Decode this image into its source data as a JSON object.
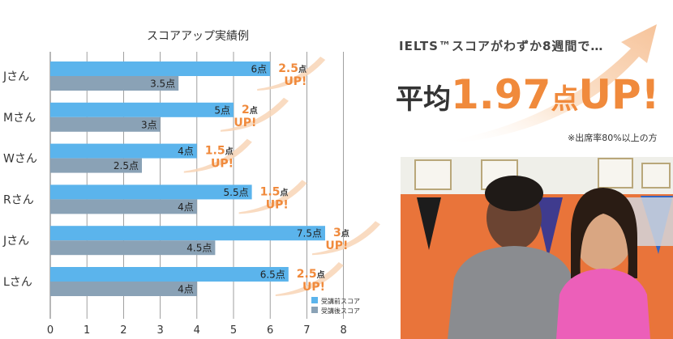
{
  "chart_data": {
    "type": "bar",
    "orientation": "horizontal",
    "title": "スコアアップ実績例",
    "categories": [
      "Jさん",
      "Mさん",
      "Wさん",
      "Rさん",
      "Jさん",
      "Lさん"
    ],
    "series": [
      {
        "name": "受講前スコア",
        "values": [
          6,
          5,
          4,
          5.5,
          7.5,
          6.5
        ],
        "labels": [
          "6点",
          "5点",
          "4点",
          "5.5点",
          "7.5点",
          "6.5点"
        ]
      },
      {
        "name": "受講後スコア",
        "values": [
          3.5,
          3,
          2.5,
          4,
          4.5,
          4
        ],
        "labels": [
          "3.5点",
          "3点",
          "2.5点",
          "4点",
          "4.5点",
          "4点"
        ]
      }
    ],
    "annotations": [
      {
        "num": "2.5",
        "unit": "点",
        "up": "UP!"
      },
      {
        "num": "2",
        "unit": "点",
        "up": "UP!"
      },
      {
        "num": "1.5",
        "unit": "点",
        "up": "UP!"
      },
      {
        "num": "1.5",
        "unit": "点",
        "up": "UP!"
      },
      {
        "num": "3",
        "unit": "点",
        "up": "UP!"
      },
      {
        "num": "2.5",
        "unit": "点",
        "up": "UP!"
      }
    ],
    "xticks": [
      "0",
      "1",
      "2",
      "3",
      "4",
      "5",
      "6",
      "7",
      "8"
    ],
    "xlim": [
      0,
      8
    ],
    "grid": true,
    "legend": "bottom-right",
    "colors": {
      "before": "#5bb4ec",
      "after": "#8aa2b6",
      "accent": "#f08a3c",
      "grid": "#888888"
    }
  },
  "panel": {
    "headline_top": "IELTS™スコアがわずか8週間で…",
    "headline_prefix": "平均",
    "headline_number": "1.97",
    "headline_unit": "点",
    "headline_up": "UP!",
    "note": "※出席率80%以上の方"
  }
}
